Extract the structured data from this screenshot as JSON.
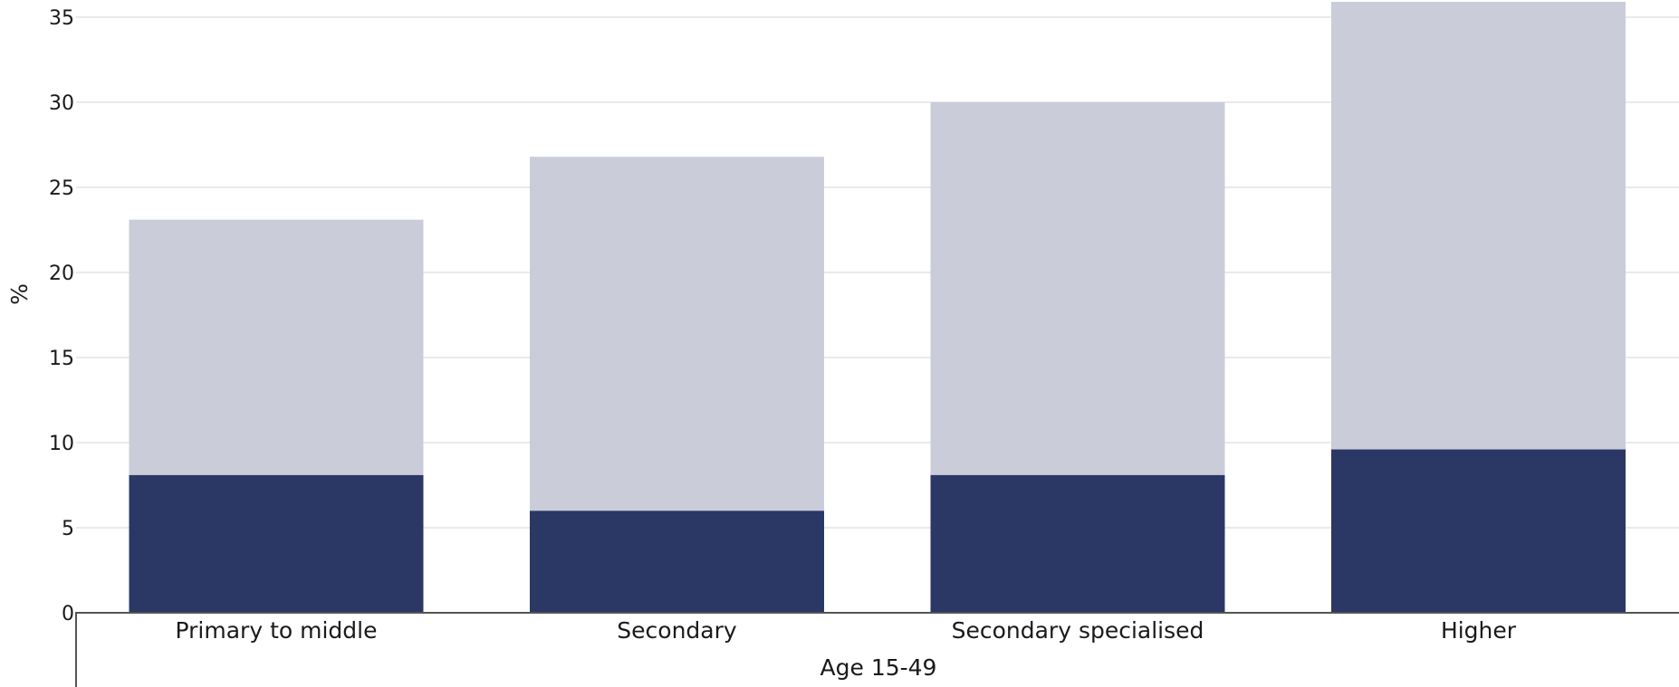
{
  "chart_data": {
    "type": "bar",
    "stacked": true,
    "title": "",
    "xlabel": "Age 15-49",
    "ylabel": "%",
    "ylim": [
      0,
      35.5
    ],
    "yticks": [
      0,
      5,
      10,
      15,
      20,
      25,
      30,
      35
    ],
    "grid": true,
    "categories": [
      "Primary to middle",
      "Secondary",
      "Secondary specialised",
      "Higher"
    ],
    "series": [
      {
        "color": "#2b3764",
        "values": [
          8.1,
          6.0,
          8.1,
          9.6
        ]
      },
      {
        "color": "#cacdd9",
        "values": [
          15.0,
          20.8,
          21.9,
          26.3
        ]
      }
    ]
  }
}
